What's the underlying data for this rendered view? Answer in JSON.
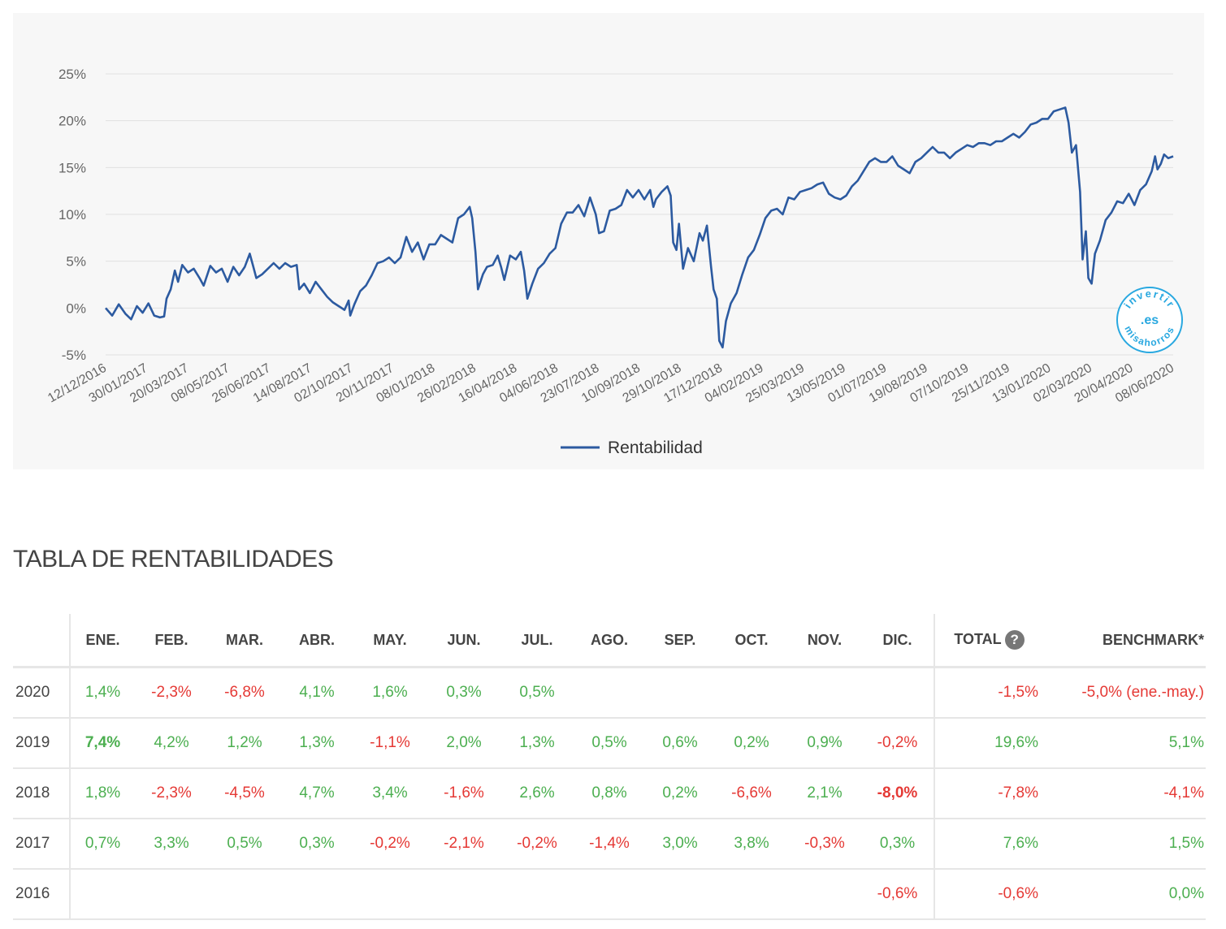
{
  "chart_data": {
    "type": "line",
    "series": [
      {
        "name": "Rentabilidad",
        "color": "#2c5aa0",
        "points": [
          [
            "2016-12-12",
            0.0
          ],
          [
            "2016-12-20",
            -0.8
          ],
          [
            "2016-12-28",
            0.4
          ],
          [
            "2017-01-05",
            -0.6
          ],
          [
            "2017-01-12",
            -1.2
          ],
          [
            "2017-01-19",
            0.2
          ],
          [
            "2017-01-26",
            -0.5
          ],
          [
            "2017-02-02",
            0.5
          ],
          [
            "2017-02-09",
            -0.8
          ],
          [
            "2017-02-16",
            -1.0
          ],
          [
            "2017-02-21",
            -0.9
          ],
          [
            "2017-02-24",
            1.0
          ],
          [
            "2017-03-01",
            2.0
          ],
          [
            "2017-03-06",
            4.0
          ],
          [
            "2017-03-10",
            2.8
          ],
          [
            "2017-03-15",
            4.6
          ],
          [
            "2017-03-22",
            3.8
          ],
          [
            "2017-03-29",
            4.2
          ],
          [
            "2017-04-05",
            3.2
          ],
          [
            "2017-04-10",
            2.4
          ],
          [
            "2017-04-18",
            4.5
          ],
          [
            "2017-04-25",
            3.8
          ],
          [
            "2017-05-02",
            4.2
          ],
          [
            "2017-05-09",
            2.8
          ],
          [
            "2017-05-16",
            4.4
          ],
          [
            "2017-05-23",
            3.5
          ],
          [
            "2017-05-30",
            4.4
          ],
          [
            "2017-06-05",
            5.8
          ],
          [
            "2017-06-09",
            4.5
          ],
          [
            "2017-06-13",
            3.2
          ],
          [
            "2017-06-20",
            3.6
          ],
          [
            "2017-06-27",
            4.2
          ],
          [
            "2017-07-04",
            4.8
          ],
          [
            "2017-07-11",
            4.2
          ],
          [
            "2017-07-18",
            4.8
          ],
          [
            "2017-07-25",
            4.4
          ],
          [
            "2017-08-01",
            4.6
          ],
          [
            "2017-08-04",
            2.0
          ],
          [
            "2017-08-10",
            2.6
          ],
          [
            "2017-08-17",
            1.6
          ],
          [
            "2017-08-24",
            2.8
          ],
          [
            "2017-08-31",
            2.0
          ],
          [
            "2017-09-07",
            1.2
          ],
          [
            "2017-09-14",
            0.6
          ],
          [
            "2017-09-21",
            0.2
          ],
          [
            "2017-09-28",
            -0.2
          ],
          [
            "2017-10-03",
            0.8
          ],
          [
            "2017-10-05",
            -0.8
          ],
          [
            "2017-10-10",
            0.4
          ],
          [
            "2017-10-17",
            1.8
          ],
          [
            "2017-10-24",
            2.4
          ],
          [
            "2017-10-31",
            3.5
          ],
          [
            "2017-11-07",
            4.8
          ],
          [
            "2017-11-14",
            5.0
          ],
          [
            "2017-11-21",
            5.4
          ],
          [
            "2017-11-28",
            4.8
          ],
          [
            "2017-12-05",
            5.4
          ],
          [
            "2017-12-12",
            7.6
          ],
          [
            "2017-12-19",
            6.0
          ],
          [
            "2017-12-26",
            7.0
          ],
          [
            "2018-01-02",
            5.2
          ],
          [
            "2018-01-09",
            6.8
          ],
          [
            "2018-01-16",
            6.8
          ],
          [
            "2018-01-23",
            7.8
          ],
          [
            "2018-01-30",
            7.4
          ],
          [
            "2018-02-06",
            7.0
          ],
          [
            "2018-02-13",
            9.6
          ],
          [
            "2018-02-20",
            10.0
          ],
          [
            "2018-02-27",
            10.8
          ],
          [
            "2018-03-02",
            9.6
          ],
          [
            "2018-03-06",
            6.0
          ],
          [
            "2018-03-09",
            2.0
          ],
          [
            "2018-03-15",
            3.6
          ],
          [
            "2018-03-20",
            4.4
          ],
          [
            "2018-03-27",
            4.6
          ],
          [
            "2018-04-02",
            5.6
          ],
          [
            "2018-04-06",
            4.4
          ],
          [
            "2018-04-10",
            3.0
          ],
          [
            "2018-04-17",
            5.6
          ],
          [
            "2018-04-24",
            5.2
          ],
          [
            "2018-04-30",
            6.0
          ],
          [
            "2018-05-04",
            4.0
          ],
          [
            "2018-05-08",
            1.0
          ],
          [
            "2018-05-14",
            2.6
          ],
          [
            "2018-05-21",
            4.2
          ],
          [
            "2018-05-28",
            4.8
          ],
          [
            "2018-06-04",
            5.8
          ],
          [
            "2018-06-11",
            6.4
          ],
          [
            "2018-06-18",
            9.0
          ],
          [
            "2018-06-25",
            10.2
          ],
          [
            "2018-07-02",
            10.2
          ],
          [
            "2018-07-09",
            11.0
          ],
          [
            "2018-07-16",
            9.8
          ],
          [
            "2018-07-23",
            11.8
          ],
          [
            "2018-07-30",
            10.0
          ],
          [
            "2018-08-03",
            8.0
          ],
          [
            "2018-08-09",
            8.2
          ],
          [
            "2018-08-16",
            10.4
          ],
          [
            "2018-08-23",
            10.6
          ],
          [
            "2018-08-30",
            11.0
          ],
          [
            "2018-09-06",
            12.6
          ],
          [
            "2018-09-13",
            11.8
          ],
          [
            "2018-09-20",
            12.6
          ],
          [
            "2018-09-27",
            11.6
          ],
          [
            "2018-10-04",
            12.6
          ],
          [
            "2018-10-08",
            10.8
          ],
          [
            "2018-10-11",
            11.6
          ],
          [
            "2018-10-18",
            12.4
          ],
          [
            "2018-10-25",
            13.0
          ],
          [
            "2018-10-29",
            12.0
          ],
          [
            "2018-11-01",
            7.0
          ],
          [
            "2018-11-05",
            6.2
          ],
          [
            "2018-11-08",
            9.0
          ],
          [
            "2018-11-13",
            4.2
          ],
          [
            "2018-11-19",
            6.4
          ],
          [
            "2018-11-26",
            5.0
          ],
          [
            "2018-12-03",
            8.0
          ],
          [
            "2018-12-07",
            7.2
          ],
          [
            "2018-12-12",
            8.8
          ],
          [
            "2018-12-17",
            4.4
          ],
          [
            "2018-12-20",
            2.0
          ],
          [
            "2018-12-24",
            1.0
          ],
          [
            "2018-12-27",
            -3.5
          ],
          [
            "2018-12-31",
            -4.2
          ],
          [
            "2019-01-04",
            -1.4
          ],
          [
            "2019-01-10",
            0.5
          ],
          [
            "2019-01-17",
            1.6
          ],
          [
            "2019-01-24",
            3.6
          ],
          [
            "2019-01-31",
            5.4
          ],
          [
            "2019-02-07",
            6.2
          ],
          [
            "2019-02-14",
            7.8
          ],
          [
            "2019-02-21",
            9.6
          ],
          [
            "2019-02-28",
            10.4
          ],
          [
            "2019-03-07",
            10.6
          ],
          [
            "2019-03-14",
            10.0
          ],
          [
            "2019-03-21",
            11.8
          ],
          [
            "2019-03-28",
            11.6
          ],
          [
            "2019-04-04",
            12.4
          ],
          [
            "2019-04-11",
            12.6
          ],
          [
            "2019-04-18",
            12.8
          ],
          [
            "2019-04-25",
            13.2
          ],
          [
            "2019-05-02",
            13.4
          ],
          [
            "2019-05-09",
            12.2
          ],
          [
            "2019-05-16",
            11.8
          ],
          [
            "2019-05-23",
            11.6
          ],
          [
            "2019-05-30",
            12.0
          ],
          [
            "2019-06-06",
            13.0
          ],
          [
            "2019-06-13",
            13.6
          ],
          [
            "2019-06-20",
            14.6
          ],
          [
            "2019-06-27",
            15.6
          ],
          [
            "2019-07-04",
            16.0
          ],
          [
            "2019-07-11",
            15.6
          ],
          [
            "2019-07-18",
            15.6
          ],
          [
            "2019-07-25",
            16.2
          ],
          [
            "2019-08-01",
            15.2
          ],
          [
            "2019-08-08",
            14.8
          ],
          [
            "2019-08-15",
            14.4
          ],
          [
            "2019-08-22",
            15.6
          ],
          [
            "2019-08-29",
            16.0
          ],
          [
            "2019-09-05",
            16.6
          ],
          [
            "2019-09-12",
            17.2
          ],
          [
            "2019-09-19",
            16.6
          ],
          [
            "2019-09-26",
            16.6
          ],
          [
            "2019-10-03",
            16.0
          ],
          [
            "2019-10-10",
            16.6
          ],
          [
            "2019-10-17",
            17.0
          ],
          [
            "2019-10-24",
            17.4
          ],
          [
            "2019-10-31",
            17.2
          ],
          [
            "2019-11-07",
            17.6
          ],
          [
            "2019-11-14",
            17.6
          ],
          [
            "2019-11-21",
            17.4
          ],
          [
            "2019-11-28",
            17.8
          ],
          [
            "2019-12-05",
            17.8
          ],
          [
            "2019-12-12",
            18.2
          ],
          [
            "2019-12-19",
            18.6
          ],
          [
            "2019-12-26",
            18.2
          ],
          [
            "2020-01-02",
            18.8
          ],
          [
            "2020-01-09",
            19.6
          ],
          [
            "2020-01-16",
            19.8
          ],
          [
            "2020-01-23",
            20.2
          ],
          [
            "2020-01-30",
            20.2
          ],
          [
            "2020-02-06",
            21.0
          ],
          [
            "2020-02-13",
            21.2
          ],
          [
            "2020-02-20",
            21.4
          ],
          [
            "2020-02-24",
            19.8
          ],
          [
            "2020-02-28",
            16.6
          ],
          [
            "2020-03-04",
            17.4
          ],
          [
            "2020-03-09",
            12.4
          ],
          [
            "2020-03-12",
            5.2
          ],
          [
            "2020-03-16",
            8.2
          ],
          [
            "2020-03-19",
            3.2
          ],
          [
            "2020-03-23",
            2.6
          ],
          [
            "2020-03-27",
            5.8
          ],
          [
            "2020-04-02",
            7.2
          ],
          [
            "2020-04-09",
            9.4
          ],
          [
            "2020-04-16",
            10.2
          ],
          [
            "2020-04-23",
            11.4
          ],
          [
            "2020-04-30",
            11.2
          ],
          [
            "2020-05-07",
            12.2
          ],
          [
            "2020-05-14",
            11.0
          ],
          [
            "2020-05-21",
            12.6
          ],
          [
            "2020-05-28",
            13.2
          ],
          [
            "2020-06-04",
            14.6
          ],
          [
            "2020-06-08",
            16.2
          ],
          [
            "2020-06-11",
            14.8
          ],
          [
            "2020-06-15",
            15.4
          ],
          [
            "2020-06-19",
            16.4
          ],
          [
            "2020-06-24",
            16.0
          ],
          [
            "2020-06-30",
            16.2
          ]
        ]
      }
    ],
    "x_ticks": [
      "12/12/2016",
      "30/01/2017",
      "20/03/2017",
      "08/05/2017",
      "26/06/2017",
      "14/08/2017",
      "02/10/2017",
      "20/11/2017",
      "08/01/2018",
      "26/02/2018",
      "16/04/2018",
      "04/06/2018",
      "23/07/2018",
      "10/09/2018",
      "29/10/2018",
      "17/12/2018",
      "04/02/2019",
      "25/03/2019",
      "13/05/2019",
      "01/07/2019",
      "19/08/2019",
      "07/10/2019",
      "25/11/2019",
      "13/01/2020",
      "02/03/2020",
      "20/04/2020",
      "08/06/2020"
    ],
    "x_range": [
      "2016-12-12",
      "2020-06-30"
    ],
    "y_ticks": [
      "25%",
      "20%",
      "15%",
      "10%",
      "5%",
      "0%",
      "-5%"
    ],
    "y_tick_values": [
      25,
      20,
      15,
      10,
      5,
      0,
      -5
    ],
    "ylim": [
      -5,
      25
    ],
    "grid": true,
    "legend_position": "bottom-center"
  },
  "watermark": {
    "top": "invertir",
    "middle": ".es",
    "bottom": "misahorros",
    "color": "#29a8e0"
  },
  "table": {
    "title": "TABLA DE RENTABILIDADES",
    "headers": [
      "",
      "ENE.",
      "FEB.",
      "MAR.",
      "ABR.",
      "MAY.",
      "JUN.",
      "JUL.",
      "AGO.",
      "SEP.",
      "OCT.",
      "NOV.",
      "DIC.",
      "TOTAL",
      "BENCHMARK*"
    ],
    "help_icon": "?",
    "rows": [
      {
        "year": "2020",
        "cells": [
          "1,4%",
          "-2,3%",
          "-6,8%",
          "4,1%",
          "1,6%",
          "0,3%",
          "0,5%",
          "",
          "",
          "",
          "",
          ""
        ],
        "total": "-1,5%",
        "benchmark": "-5,0% (ene.-may.)"
      },
      {
        "year": "2019",
        "cells": [
          "7,4%",
          "4,2%",
          "1,2%",
          "1,3%",
          "-1,1%",
          "2,0%",
          "1,3%",
          "0,5%",
          "0,6%",
          "0,2%",
          "0,9%",
          "-0,2%"
        ],
        "total": "19,6%",
        "benchmark": "5,1%"
      },
      {
        "year": "2018",
        "cells": [
          "1,8%",
          "-2,3%",
          "-4,5%",
          "4,7%",
          "3,4%",
          "-1,6%",
          "2,6%",
          "0,8%",
          "0,2%",
          "-6,6%",
          "2,1%",
          "-8,0%"
        ],
        "total": "-7,8%",
        "benchmark": "-4,1%"
      },
      {
        "year": "2017",
        "cells": [
          "0,7%",
          "3,3%",
          "0,5%",
          "0,3%",
          "-0,2%",
          "-2,1%",
          "-0,2%",
          "-1,4%",
          "3,0%",
          "3,8%",
          "-0,3%",
          "0,3%"
        ],
        "total": "7,6%",
        "benchmark": "1,5%"
      },
      {
        "year": "2016",
        "cells": [
          "",
          "",
          "",
          "",
          "",
          "",
          "",
          "",
          "",
          "",
          "",
          "-0,6%"
        ],
        "total": "-0,6%",
        "benchmark": "0,0%"
      }
    ],
    "bold_cells": [
      "2019-0",
      "2018-11"
    ],
    "positive_color": "#4caf50",
    "negative_color": "#e53935"
  }
}
